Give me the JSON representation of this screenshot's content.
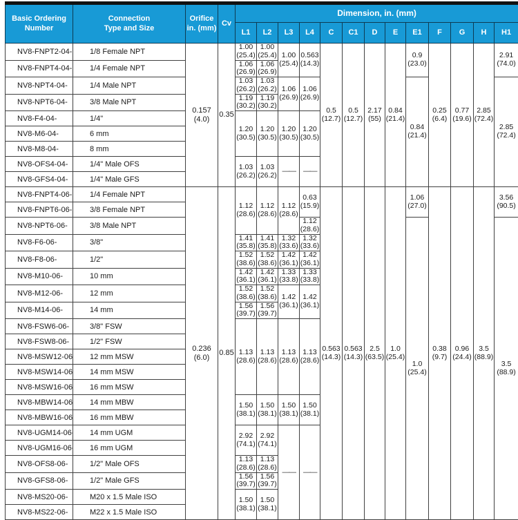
{
  "colors": {
    "header_bg": "#189ad6",
    "header_text": "#ffffff",
    "header_grid": "#0d3a52",
    "grid": "#3f3f3f",
    "top_bar": "#111111",
    "text": "#1a1a1a"
  },
  "table": {
    "header": {
      "basic_ordering": "Basic Ordering\nNumber",
      "connection": "Connection\nType and Size",
      "orifice": "Orifice\nin. (mm)",
      "cv": "Cv",
      "dimension": "Dimension, in. (mm)",
      "dim_columns": [
        "L1",
        "L2",
        "L3",
        "L4",
        "C",
        "C1",
        "D",
        "E",
        "E1",
        "F",
        "G",
        "H",
        "H1"
      ]
    },
    "sections": [
      {
        "orifice": "0.157\n(4.0)",
        "cv": "0.35",
        "rows": [
          {
            "number": "NV8-FNPT2-04-",
            "connection": "1/8 Female NPT"
          },
          {
            "number": "NV8-FNPT4-04-",
            "connection": "1/4 Female NPT"
          },
          {
            "number": "NV8-NPT4-04-",
            "connection": "1/4 Male NPT"
          },
          {
            "number": "NV8-NPT6-04-",
            "connection": "3/8 Male NPT"
          },
          {
            "number": "NV8-F4-04-",
            "connection": "1/4\""
          },
          {
            "number": "NV8-M6-04-",
            "connection": "6 mm"
          },
          {
            "number": "NV8-M8-04-",
            "connection": "8 mm"
          },
          {
            "number": "NV8-OFS4-04-",
            "connection": "1/4\" Male OFS"
          },
          {
            "number": "NV8-GFS4-04-",
            "connection": "1/4\" Male GFS"
          }
        ],
        "dims": {
          "L1": [
            {
              "span": 1,
              "text": "1.00\n(25.4)"
            },
            {
              "span": 1,
              "text": "1.06\n(26.9)"
            },
            {
              "span": 1,
              "text": "1.03\n(26.2)"
            },
            {
              "span": 1,
              "text": "1.19\n(30.2)"
            },
            {
              "span": 3,
              "text": "1.20\n(30.5)"
            },
            {
              "span": 2,
              "text": "1.03\n(26.2)"
            }
          ],
          "L2": [
            {
              "span": 1,
              "text": "1.00\n(25.4)"
            },
            {
              "span": 1,
              "text": "1.06\n(26.9)"
            },
            {
              "span": 1,
              "text": "1.03\n(26.2)"
            },
            {
              "span": 1,
              "text": "1.19\n(30.2)"
            },
            {
              "span": 3,
              "text": "1.20\n(30.5)"
            },
            {
              "span": 2,
              "text": "1.03\n(26.2)"
            }
          ],
          "L3": [
            {
              "span": 2,
              "text": "1.00\n(25.4)"
            },
            {
              "span": 2,
              "text": "1.06\n(26.9)"
            },
            {
              "span": 3,
              "text": "1.20\n(30.5)"
            },
            {
              "span": 2,
              "text": "——"
            }
          ],
          "L4": [
            {
              "span": 2,
              "text": "0.563\n(14.3)"
            },
            {
              "span": 2,
              "text": "1.06\n(26.9)"
            },
            {
              "span": 3,
              "text": "1.20\n(30.5)"
            },
            {
              "span": 2,
              "text": "——"
            }
          ],
          "C": [
            {
              "span": 9,
              "text": "0.5\n(12.7)"
            }
          ],
          "C1": [
            {
              "span": 9,
              "text": "0.5\n(12.7)"
            }
          ],
          "D": [
            {
              "span": 9,
              "text": "2.17\n(55)"
            }
          ],
          "E": [
            {
              "span": 9,
              "text": "0.84\n(21.4)"
            }
          ],
          "E1": [
            {
              "span": 2,
              "text": "0.9\n(23.0)"
            },
            {
              "span": 7,
              "text": "0.84\n(21.4)"
            }
          ],
          "F": [
            {
              "span": 9,
              "text": "0.25\n(6.4)"
            }
          ],
          "G": [
            {
              "span": 9,
              "text": "0.77\n(19.6)"
            }
          ],
          "H": [
            {
              "span": 9,
              "text": "2.85\n(72.4)"
            }
          ],
          "H1": [
            {
              "span": 2,
              "text": "2.91\n(74.0)"
            },
            {
              "span": 7,
              "text": "2.85\n(72.4)"
            }
          ]
        }
      },
      {
        "orifice": "0.236\n(6.0)",
        "cv": "0.85",
        "rows": [
          {
            "number": "NV8-FNPT4-06-",
            "connection": "1/4 Female NPT"
          },
          {
            "number": "NV8-FNPT6-06-",
            "connection": "3/8 Female NPT"
          },
          {
            "number": "NV8-NPT6-06-",
            "connection": "3/8 Male NPT"
          },
          {
            "number": "NV8-F6-06-",
            "connection": "3/8\""
          },
          {
            "number": "NV8-F8-06-",
            "connection": "1/2\""
          },
          {
            "number": "NV8-M10-06-",
            "connection": "10 mm"
          },
          {
            "number": "NV8-M12-06-",
            "connection": "12 mm"
          },
          {
            "number": "NV8-M14-06-",
            "connection": "14 mm"
          },
          {
            "number": "NV8-FSW6-06-",
            "connection": "3/8\" FSW"
          },
          {
            "number": "NV8-FSW8-06-",
            "connection": "1/2\" FSW"
          },
          {
            "number": "NV8-MSW12-06-",
            "connection": "12 mm MSW"
          },
          {
            "number": "NV8-MSW14-06-",
            "connection": "14 mm MSW"
          },
          {
            "number": "NV8-MSW16-06-",
            "connection": "16 mm MSW"
          },
          {
            "number": "NV8-MBW14-06-",
            "connection": "14 mm MBW"
          },
          {
            "number": "NV8-MBW16-06-",
            "connection": "16 mm MBW"
          },
          {
            "number": "NV8-UGM14-06-",
            "connection": "14 mm UGM"
          },
          {
            "number": "NV8-UGM16-06-",
            "connection": "16 mm UGM"
          },
          {
            "number": "NV8-OFS8-06-",
            "connection": "1/2\" Male OFS"
          },
          {
            "number": "NV8-GFS8-06-",
            "connection": "1/2\" Male GFS"
          },
          {
            "number": "NV8-MS20-06-",
            "connection": "M20 x 1.5 Male ISO"
          },
          {
            "number": "NV8-MS22-06-",
            "connection": "M22 x 1.5 Male ISO"
          }
        ],
        "dims": {
          "L1": [
            {
              "span": 3,
              "text": "1.12\n(28.6)"
            },
            {
              "span": 1,
              "text": "1.41\n(35.8)"
            },
            {
              "span": 1,
              "text": "1.52\n(38.6)"
            },
            {
              "span": 1,
              "text": "1.42\n(36.1)"
            },
            {
              "span": 1,
              "text": "1.52\n(38.6)"
            },
            {
              "span": 1,
              "text": "1.56\n(39.7)"
            },
            {
              "span": 5,
              "text": "1.13\n(28.6)"
            },
            {
              "span": 2,
              "text": "1.50\n(38.1)"
            },
            {
              "span": 2,
              "text": "2.92\n(74.1)"
            },
            {
              "span": 1,
              "text": "1.13\n(28.6)"
            },
            {
              "span": 1,
              "text": "1.56\n(39.7)"
            },
            {
              "span": 2,
              "text": "1.50\n(38.1)"
            }
          ],
          "L2": [
            {
              "span": 3,
              "text": "1.12\n(28.6)"
            },
            {
              "span": 1,
              "text": "1.41\n(35.8)"
            },
            {
              "span": 1,
              "text": "1.52\n(38.6)"
            },
            {
              "span": 1,
              "text": "1.42\n(36.1)"
            },
            {
              "span": 1,
              "text": "1.52\n(38.6)"
            },
            {
              "span": 1,
              "text": "1.56\n(39.7)"
            },
            {
              "span": 5,
              "text": "1.13\n(28.6)"
            },
            {
              "span": 2,
              "text": "1.50\n(38.1)"
            },
            {
              "span": 2,
              "text": "2.92\n(74.1)"
            },
            {
              "span": 1,
              "text": "1.13\n(28.6)"
            },
            {
              "span": 1,
              "text": "1.56\n(39.7)"
            },
            {
              "span": 2,
              "text": "1.50\n(38.1)"
            }
          ],
          "L3": [
            {
              "span": 3,
              "text": "1.12\n(28.6)"
            },
            {
              "span": 1,
              "text": "1.32\n(33.6)"
            },
            {
              "span": 1,
              "text": "1.42\n(36.1)"
            },
            {
              "span": 1,
              "text": "1.33\n(33.8)"
            },
            {
              "span": 2,
              "text": "1.42\n(36.1)"
            },
            {
              "span": 5,
              "text": "1.13\n(28.6)"
            },
            {
              "span": 2,
              "text": "1.50\n(38.1)"
            },
            {
              "span": 6,
              "text": "——"
            }
          ],
          "L4": [
            {
              "span": 2,
              "text": "0.63\n(15.9)"
            },
            {
              "span": 1,
              "text": "1.12\n(28.6)"
            },
            {
              "span": 1,
              "text": "1.32\n(33.6)"
            },
            {
              "span": 1,
              "text": "1.42\n(36.1)"
            },
            {
              "span": 1,
              "text": "1.33\n(33.8)"
            },
            {
              "span": 2,
              "text": "1.42\n(36.1)"
            },
            {
              "span": 5,
              "text": "1.13\n(28.6)"
            },
            {
              "span": 2,
              "text": "1.50\n(38.1)"
            },
            {
              "span": 6,
              "text": "——"
            }
          ],
          "C": [
            {
              "span": 21,
              "text": "0.563\n(14.3)"
            }
          ],
          "C1": [
            {
              "span": 21,
              "text": "0.563\n(14.3)"
            }
          ],
          "D": [
            {
              "span": 21,
              "text": "2.5\n(63.5)"
            }
          ],
          "E": [
            {
              "span": 21,
              "text": "1.0\n(25.4)"
            }
          ],
          "E1": [
            {
              "span": 2,
              "text": "1.06\n(27.0)"
            },
            {
              "span": 19,
              "text": "1.0\n(25.4)"
            }
          ],
          "F": [
            {
              "span": 21,
              "text": "0.38\n(9.7)"
            }
          ],
          "G": [
            {
              "span": 21,
              "text": "0.96\n(24.4)"
            }
          ],
          "H": [
            {
              "span": 21,
              "text": "3.5\n(88.9)"
            }
          ],
          "H1": [
            {
              "span": 2,
              "text": "3.56\n(90.5)"
            },
            {
              "span": 19,
              "text": "3.5\n(88.9)"
            }
          ]
        }
      }
    ]
  }
}
